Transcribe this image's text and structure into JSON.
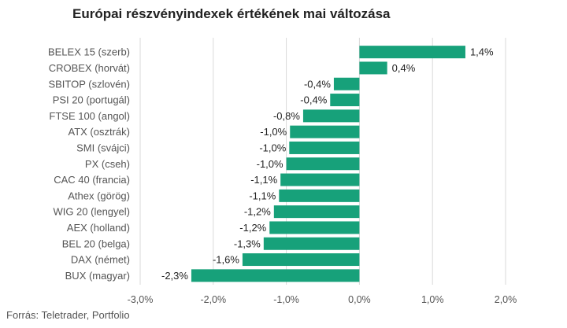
{
  "title": "Európai részvényindexek értékének mai változása",
  "source": "Forrás: Teletrader, Portfolio",
  "colors": {
    "bar": "#17a17a",
    "grid": "#d9d9d9"
  },
  "chart_data": {
    "type": "bar",
    "orientation": "horizontal",
    "title": "Európai részvényindexek értékének mai változása",
    "xlim": [
      -3.0,
      2.0
    ],
    "xticks": [
      -3.0,
      -2.0,
      -1.0,
      0.0,
      1.0,
      2.0
    ],
    "xtick_labels": [
      "-3,0%",
      "-2,0%",
      "-1,0%",
      "0,0%",
      "1,0%",
      "2,0%"
    ],
    "grid": true,
    "categories": [
      "BELEX 15 (szerb)",
      "CROBEX (horvát)",
      "SBITOP (szlovén)",
      "PSI 20 (portugál)",
      "FTSE 100 (angol)",
      "ATX (osztrák)",
      "SMI (svájci)",
      "PX (cseh)",
      "CAC 40 (francia)",
      "Athex (görög)",
      "WIG 20 (lengyel)",
      "AEX (holland)",
      "BEL 20 (belga)",
      "DAX (német)",
      "BUX (magyar)"
    ],
    "values": [
      1.45,
      0.38,
      -0.35,
      -0.4,
      -0.77,
      -0.95,
      -0.96,
      -1.0,
      -1.08,
      -1.1,
      -1.17,
      -1.23,
      -1.31,
      -1.6,
      -2.3
    ],
    "value_labels": [
      "1,4%",
      "0,4%",
      "-0,4%",
      "-0,4%",
      "-0,8%",
      "-1,0%",
      "-1,0%",
      "-1,0%",
      "-1,1%",
      "-1,1%",
      "-1,2%",
      "-1,2%",
      "-1,3%",
      "-1,6%",
      "-2,3%"
    ]
  }
}
